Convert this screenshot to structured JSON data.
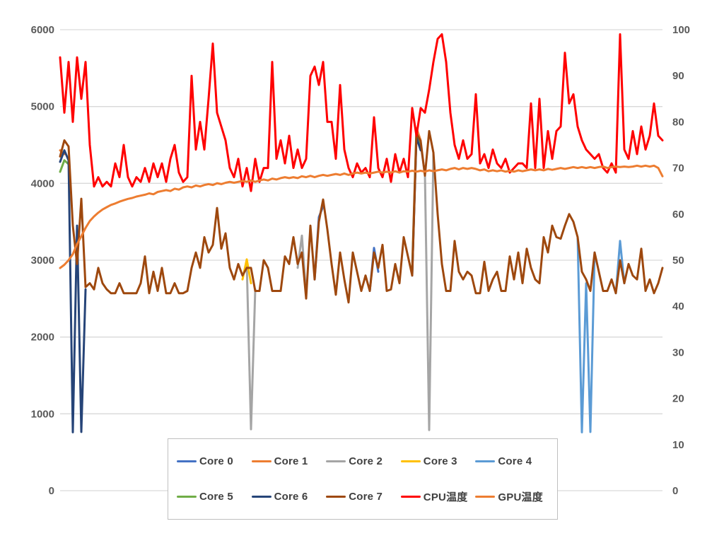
{
  "chart_data": {
    "type": "line",
    "title": "",
    "points": 143,
    "grid": "horizontal",
    "legend_position": "bottom",
    "legend_rows": 2,
    "left_axis": {
      "min": 0,
      "max": 6000,
      "step": 1000,
      "unit": "MHz",
      "ticks": [
        "0",
        "1000",
        "2000",
        "3000",
        "4000",
        "5000",
        "6000"
      ]
    },
    "right_axis": {
      "min": 0,
      "max": 100,
      "step": 10,
      "unit": "°C",
      "ticks": [
        "0",
        "10",
        "20",
        "30",
        "40",
        "50",
        "60",
        "70",
        "80",
        "90",
        "100"
      ]
    },
    "colors": {
      "grid": "#d9d9d9",
      "axis_text": "#595959",
      "legend_border": "#bfbfbf",
      "background": "#ffffff"
    },
    "series": [
      {
        "name": "Core 0",
        "color": "#4472C4",
        "axis": "left",
        "note": "mostly hidden behind Core 7",
        "segments": [
          {
            "i": 60,
            "v": [
              2750,
              3560,
              3700
            ]
          },
          {
            "i": 73,
            "v": [
              2600,
              3160,
              2850
            ]
          }
        ]
      },
      {
        "name": "Core 1",
        "color": "#ED7D31",
        "axis": "left",
        "note": "mostly hidden behind Core 7",
        "segments": [
          {
            "i": 0,
            "v": [
              4430,
              4380
            ]
          },
          {
            "i": 83,
            "v": [
              2900,
              4720,
              4560
            ]
          }
        ]
      },
      {
        "name": "Core 2",
        "color": "#A5A5A5",
        "axis": "left",
        "note": "mostly hidden behind Core 7",
        "segments": [
          {
            "i": 44,
            "v": [
              2950,
              800,
              2620
            ]
          },
          {
            "i": 56,
            "v": [
              2900,
              3320,
              2550
            ]
          },
          {
            "i": 85,
            "v": [
              4500,
              4120,
              790,
              4400
            ]
          }
        ]
      },
      {
        "name": "Core 3",
        "color": "#FFC000",
        "axis": "left",
        "note": "mostly hidden behind Core 7",
        "segments": [
          {
            "i": 43,
            "v": [
              2750,
              3010,
              2700
            ]
          }
        ]
      },
      {
        "name": "Core 4",
        "color": "#5B9BD5",
        "axis": "left",
        "note": "mostly hidden behind Core 7",
        "segments": [
          {
            "i": 122,
            "v": [
              3300,
              760,
              2700,
              765,
              3100
            ]
          },
          {
            "i": 131,
            "v": [
              2570,
              3250,
              2700
            ]
          }
        ]
      },
      {
        "name": "Core 5",
        "color": "#70AD47",
        "axis": "left",
        "note": "mostly hidden behind Core 7",
        "segments": [
          {
            "i": 0,
            "v": [
              4150,
              4300,
              4250
            ]
          },
          {
            "i": 83,
            "v": [
              2850,
              4660,
              4480
            ]
          }
        ]
      },
      {
        "name": "Core 6",
        "color": "#264478",
        "axis": "left",
        "note": "mostly hidden behind Core 7",
        "segments": [
          {
            "i": 0,
            "v": [
              4280,
              4430,
              4300,
              760,
              3450,
              765,
              2620
            ]
          },
          {
            "i": 83,
            "v": [
              2800,
              4600,
              4430
            ]
          }
        ]
      },
      {
        "name": "Core 7",
        "color": "#9E480E",
        "axis": "left",
        "segments": [
          {
            "i": 0,
            "v": [
              4350,
              4560,
              4480,
              3450,
              2950,
              3800,
              2650,
              2700,
              2620,
              2900,
              2700,
              2620,
              2570,
              2570,
              2700,
              2570,
              2570,
              2570,
              2570,
              2700,
              3050,
              2570,
              2850,
              2600,
              2900,
              2570,
              2570,
              2700,
              2570,
              2570,
              2600,
              2900,
              3100,
              2900,
              3300,
              3100,
              3200,
              3680,
              3150,
              3350,
              2900,
              2750,
              2950,
              2800,
              2900,
              2900,
              2600,
              2600,
              3000,
              2900,
              2600,
              2600,
              2600,
              3050,
              2950,
              3300,
              2950,
              3100,
              2500,
              3450,
              2750,
              3500,
              3790,
              3400,
              2950,
              2550,
              3100,
              2750,
              2450,
              3100,
              2850,
              2600,
              2800,
              2600,
              3100,
              2900,
              3200,
              2600,
              2620,
              2950,
              2700,
              3300,
              3050,
              2800,
              4650,
              4550,
              4100,
              4680,
              4400,
              3600,
              2950,
              2600,
              2600,
              3250,
              2850,
              2750,
              2850,
              2800,
              2570,
              2570,
              2980,
              2600,
              2750,
              2850,
              2600,
              2600,
              3050,
              2750,
              3100,
              2700,
              3150,
              2900,
              2750,
              2700,
              3300,
              3100,
              3450,
              3300,
              3280,
              3450,
              3600,
              3500,
              3300,
              2850,
              2750,
              2600,
              3100,
              2850,
              2600,
              2600,
              2750,
              2570,
              3000,
              2700,
              2950,
              2800,
              2750,
              3150,
              2600,
              2750,
              2570,
              2700,
              2900
            ]
          }
        ]
      },
      {
        "name": "CPU温度",
        "color": "#FF0000",
        "axis": "right",
        "segments": [
          {
            "i": 0,
            "v": [
              94,
              82,
              93,
              80,
              94,
              85,
              93,
              75,
              66,
              68,
              66,
              67,
              66,
              71,
              68,
              75,
              68,
              66,
              68,
              67,
              70,
              67,
              71,
              68,
              71,
              67,
              72,
              75,
              69,
              67,
              68,
              90,
              74,
              80,
              74,
              85,
              97,
              82,
              79,
              76,
              70,
              68,
              72,
              66,
              70,
              65,
              72,
              67,
              70,
              70,
              93,
              72,
              76,
              71,
              77,
              70,
              74,
              70,
              72,
              90,
              92,
              88,
              93,
              80,
              80,
              72,
              88,
              74,
              70,
              68,
              71,
              69,
              70,
              68,
              81,
              70,
              68,
              72,
              67,
              73,
              69,
              72,
              68,
              83,
              77,
              83,
              82,
              87,
              93,
              98,
              99,
              93,
              82,
              75,
              72,
              76,
              72,
              73,
              86,
              71,
              73,
              70,
              74,
              71,
              70,
              72,
              69,
              70,
              71,
              71,
              70,
              84,
              70,
              85,
              70,
              78,
              72,
              78,
              79,
              95,
              84,
              86,
              79,
              76,
              74,
              73,
              72,
              73,
              70,
              69,
              71,
              69,
              99,
              74,
              72,
              78,
              73,
              79,
              74,
              77,
              84,
              77,
              76
            ]
          }
        ]
      },
      {
        "name": "GPU温度",
        "color": "#ED7D31",
        "axis": "right",
        "segments": [
          {
            "i": 0,
            "v": [
              48.3,
              49,
              50,
              51.3,
              53.5,
              55.2,
              57,
              58.5,
              59.5,
              60.3,
              61,
              61.5,
              62,
              62.3,
              62.7,
              63,
              63.3,
              63.5,
              63.8,
              64,
              64.2,
              64.5,
              64.3,
              64.8,
              65,
              65.2,
              65,
              65.5,
              65.3,
              65.8,
              66,
              65.8,
              66.2,
              66,
              66.3,
              66.5,
              66.3,
              66.7,
              66.5,
              66.8,
              67,
              66.8,
              67,
              67.2,
              67,
              67.3,
              67,
              67.3,
              67.5,
              67.3,
              67.7,
              67.5,
              67.8,
              68,
              67.8,
              68,
              67.8,
              68.2,
              68,
              68.3,
              68,
              68.3,
              68.5,
              68.3,
              68.5,
              68.7,
              68.5,
              68.8,
              68.5,
              68.8,
              69,
              68.8,
              69,
              68.8,
              69,
              69.2,
              69,
              69.2,
              69,
              69.3,
              69,
              69.3,
              69.2,
              69.4,
              69.2,
              69.4,
              69.2,
              69.5,
              69.3,
              69.5,
              69.7,
              69.5,
              69.8,
              70,
              69.7,
              70,
              69.8,
              70,
              69.8,
              69.5,
              69.7,
              69.3,
              69.5,
              69.3,
              69.5,
              69.2,
              69.4,
              69.2,
              69.5,
              69.3,
              69.5,
              69.7,
              69.5,
              69.7,
              69.5,
              69.8,
              69.6,
              69.8,
              70,
              69.8,
              70,
              70.2,
              70,
              70.2,
              70,
              70.2,
              70,
              70.2,
              70.3,
              70,
              70.2,
              70.3,
              70.2,
              70.3,
              70.2,
              70.3,
              70.5,
              70.3,
              70.5,
              70.3,
              70.5,
              70,
              68.2
            ]
          }
        ]
      }
    ]
  }
}
